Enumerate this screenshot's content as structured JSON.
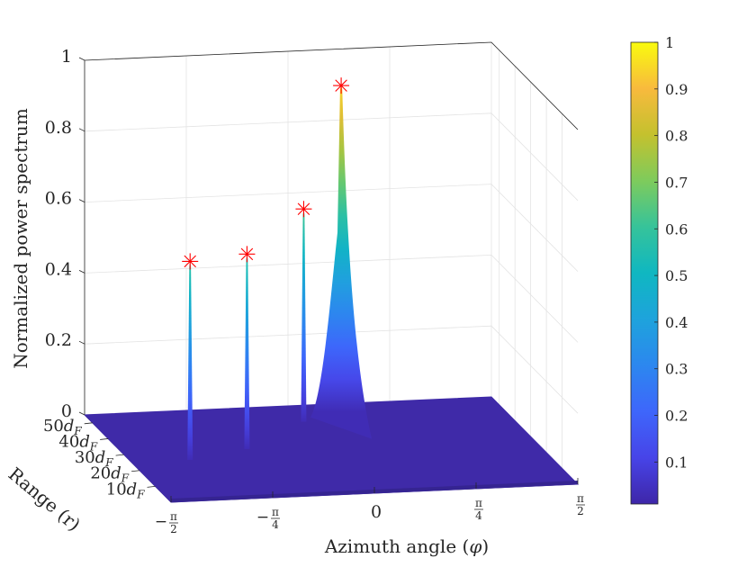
{
  "chart_data": {
    "type": "surface3d",
    "zlabel": "Normalized power spectrum",
    "xlabel": "Azimuth angle (φ)",
    "ylabel": "Range (r)",
    "x_ticks": [
      {
        "value": -1.5708,
        "label": "−π/2"
      },
      {
        "value": -0.7854,
        "label": "−π/4"
      },
      {
        "value": 0,
        "label": "0"
      },
      {
        "value": 0.7854,
        "label": "π/4"
      },
      {
        "value": 1.5708,
        "label": "π/2"
      }
    ],
    "y_ticks": [
      {
        "value": 10,
        "label": "10d_F"
      },
      {
        "value": 20,
        "label": "20d_F"
      },
      {
        "value": 30,
        "label": "30d_F"
      },
      {
        "value": 40,
        "label": "40d_F"
      },
      {
        "value": 50,
        "label": "50d_F"
      }
    ],
    "z_ticks": [
      {
        "value": 0,
        "label": "0"
      },
      {
        "value": 0.2,
        "label": "0.2"
      },
      {
        "value": 0.4,
        "label": "0.4"
      },
      {
        "value": 0.6,
        "label": "0.6"
      },
      {
        "value": 0.8,
        "label": "0.8"
      },
      {
        "value": 1,
        "label": "1"
      }
    ],
    "xlim": [
      -1.5708,
      1.5708
    ],
    "ylim": [
      0,
      55
    ],
    "zlim": [
      0,
      1
    ],
    "grid": true,
    "colormap": "parula",
    "colorbar": {
      "ticks": [
        "0.1",
        "0.2",
        "0.3",
        "0.4",
        "0.5",
        "0.6",
        "0.7",
        "0.8",
        "0.9",
        "1"
      ],
      "tick_values": [
        0.1,
        0.2,
        0.3,
        0.4,
        0.5,
        0.6,
        0.7,
        0.8,
        0.9,
        1
      ],
      "range": [
        0.01,
        1
      ]
    },
    "peaks": [
      {
        "phi": -1.12,
        "r": 25,
        "value": 0.56
      },
      {
        "phi": -0.62,
        "r": 30,
        "value": 0.55
      },
      {
        "phi": 0.0,
        "r": 45,
        "value": 0.6
      },
      {
        "phi": 0.35,
        "r": 50,
        "value": 0.92
      }
    ],
    "marker_color": "#ff0000",
    "surface_base_color": "#3f2aa8"
  }
}
